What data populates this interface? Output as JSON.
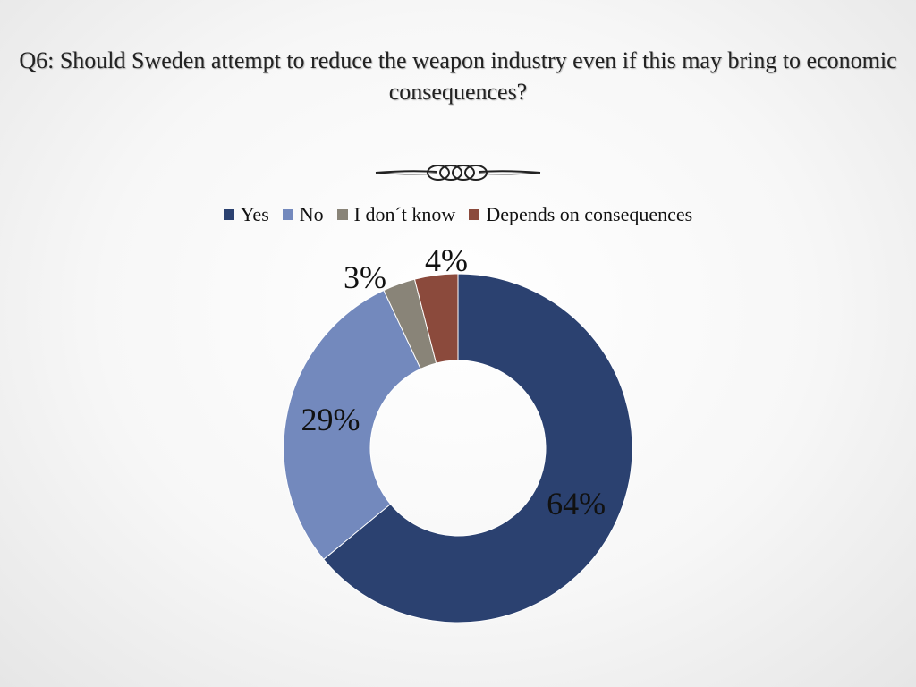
{
  "slide": {
    "title": "Q6: Should Sweden attempt to reduce the weapon industry even if this may bring to economic consequences?"
  },
  "chart_data": {
    "type": "pie",
    "variant": "doughnut",
    "title": "Q6: Should Sweden attempt to reduce the weapon industry even if this may bring to economic consequences?",
    "legend_position": "top",
    "categories": [
      "Yes",
      "No",
      "I don´t know",
      "Depends on consequences"
    ],
    "values": [
      64,
      29,
      3,
      4
    ],
    "labels": [
      "64%",
      "29%",
      "3%",
      "4%"
    ],
    "colors": [
      "#2b4170",
      "#7389bd",
      "#898478",
      "#8b4a3c"
    ]
  }
}
